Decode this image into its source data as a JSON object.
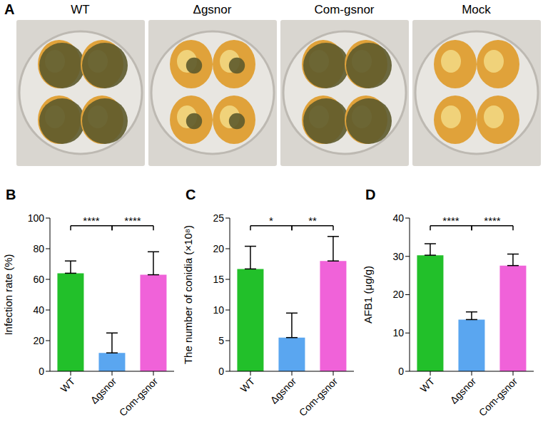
{
  "photos": {
    "label": "A",
    "titles": [
      "WT",
      "Δgsnor",
      "Com-gsnor",
      "Mock"
    ]
  },
  "chart_data": [
    {
      "label": "B",
      "type": "bar",
      "y_label": "Infection rate (%)",
      "categories": [
        "WT",
        "Δgsnor",
        "Com-gsnor"
      ],
      "values": [
        64,
        12,
        63
      ],
      "error": [
        8,
        13,
        15
      ],
      "colors": [
        "#22c02a",
        "#5aa6f0",
        "#f062d9"
      ],
      "ylim": [
        0,
        100
      ],
      "yticks": [
        0,
        20,
        40,
        60,
        80,
        100
      ],
      "annotations": [
        {
          "from": "WT",
          "to": "Δgsnor",
          "label": "****"
        },
        {
          "from": "Δgsnor",
          "to": "Com-gsnor",
          "label": "****"
        }
      ]
    },
    {
      "label": "C",
      "type": "bar",
      "y_label": "The number of conidia (×10⁸)",
      "categories": [
        "WT",
        "Δgsnor",
        "Com-gsnor"
      ],
      "values": [
        16.7,
        5.5,
        18
      ],
      "error": [
        3.7,
        4,
        4
      ],
      "colors": [
        "#22c02a",
        "#5aa6f0",
        "#f062d9"
      ],
      "ylim": [
        0,
        25
      ],
      "yticks": [
        0,
        5,
        10,
        15,
        20,
        25
      ],
      "annotations": [
        {
          "from": "WT",
          "to": "Δgsnor",
          "label": "*"
        },
        {
          "from": "Δgsnor",
          "to": "Com-gsnor",
          "label": "**"
        }
      ]
    },
    {
      "label": "D",
      "type": "bar",
      "y_label": "AFB1 (μg/g)",
      "categories": [
        "WT",
        "Δgsnor",
        "Com-gsnor"
      ],
      "values": [
        30.3,
        13.5,
        27.6
      ],
      "error": [
        3,
        2,
        3
      ],
      "colors": [
        "#22c02a",
        "#5aa6f0",
        "#f062d9"
      ],
      "ylim": [
        0,
        40
      ],
      "yticks": [
        0,
        10,
        20,
        30,
        40
      ],
      "annotations": [
        {
          "from": "WT",
          "to": "Δgsnor",
          "label": "****"
        },
        {
          "from": "Δgsnor",
          "to": "Com-gsnor",
          "label": "****"
        }
      ]
    }
  ]
}
